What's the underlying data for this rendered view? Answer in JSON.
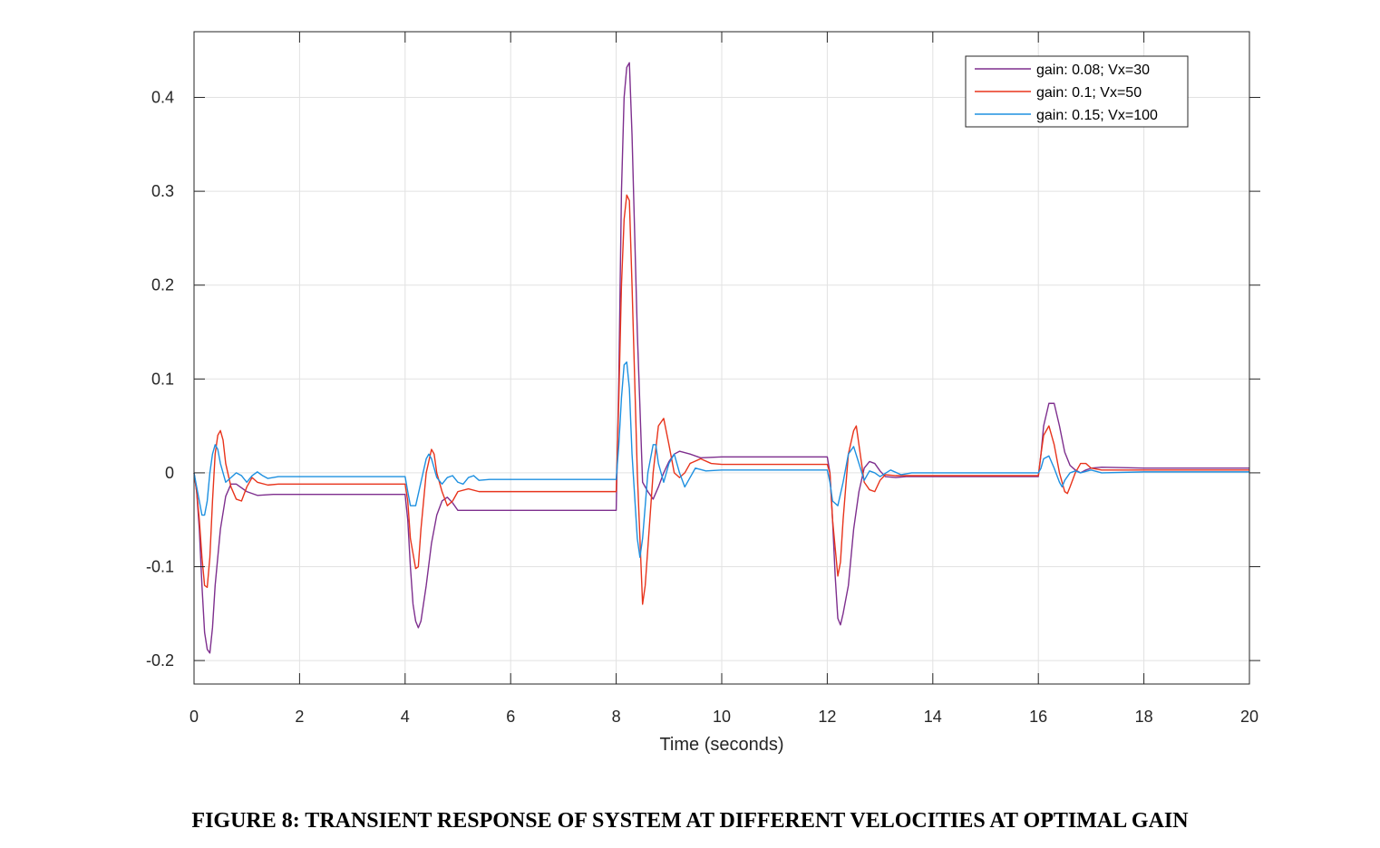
{
  "caption": "FIGURE 8: TRANSIENT RESPONSE OF SYSTEM AT DIFFERENT VELOCITIES AT OPTIMAL GAIN",
  "chart_data": {
    "type": "line",
    "title": "",
    "xlabel": "Time (seconds)",
    "ylabel": "",
    "xlim": [
      0,
      20
    ],
    "ylim": [
      -0.225,
      0.47
    ],
    "xticks": [
      0,
      2,
      4,
      6,
      8,
      10,
      12,
      14,
      16,
      18,
      20
    ],
    "xtick_labels": [
      "0",
      "2",
      "4",
      "6",
      "8",
      "10",
      "12",
      "14",
      "16",
      "18",
      "20"
    ],
    "yticks": [
      -0.2,
      -0.1,
      0,
      0.1,
      0.2,
      0.3,
      0.4
    ],
    "ytick_labels": [
      "-0.2",
      "-0.1",
      "0",
      "0.1",
      "0.2",
      "0.3",
      "0.4"
    ],
    "grid": true,
    "legend_position": "top-right",
    "series": [
      {
        "name": "gain: 0.08; Vx=30",
        "color": "#7E2F8E",
        "points": [
          [
            0,
            0
          ],
          [
            0.05,
            -0.02
          ],
          [
            0.1,
            -0.06
          ],
          [
            0.15,
            -0.12
          ],
          [
            0.2,
            -0.17
          ],
          [
            0.25,
            -0.188
          ],
          [
            0.3,
            -0.192
          ],
          [
            0.35,
            -0.165
          ],
          [
            0.4,
            -0.12
          ],
          [
            0.5,
            -0.06
          ],
          [
            0.6,
            -0.025
          ],
          [
            0.7,
            -0.012
          ],
          [
            0.8,
            -0.012
          ],
          [
            1.0,
            -0.02
          ],
          [
            1.2,
            -0.024
          ],
          [
            1.5,
            -0.023
          ],
          [
            2.0,
            -0.023
          ],
          [
            3.0,
            -0.023
          ],
          [
            4.0,
            -0.023
          ],
          [
            4.05,
            -0.05
          ],
          [
            4.1,
            -0.1
          ],
          [
            4.15,
            -0.14
          ],
          [
            4.2,
            -0.158
          ],
          [
            4.25,
            -0.165
          ],
          [
            4.3,
            -0.158
          ],
          [
            4.4,
            -0.12
          ],
          [
            4.5,
            -0.075
          ],
          [
            4.6,
            -0.045
          ],
          [
            4.7,
            -0.03
          ],
          [
            4.8,
            -0.026
          ],
          [
            4.9,
            -0.032
          ],
          [
            5.0,
            -0.04
          ],
          [
            5.2,
            -0.04
          ],
          [
            5.5,
            -0.04
          ],
          [
            6.0,
            -0.04
          ],
          [
            7.0,
            -0.04
          ],
          [
            8.0,
            -0.04
          ],
          [
            8.05,
            0.1
          ],
          [
            8.1,
            0.3
          ],
          [
            8.15,
            0.4
          ],
          [
            8.2,
            0.432
          ],
          [
            8.25,
            0.437
          ],
          [
            8.3,
            0.36
          ],
          [
            8.4,
            0.15
          ],
          [
            8.5,
            -0.01
          ],
          [
            8.6,
            -0.02
          ],
          [
            8.7,
            -0.028
          ],
          [
            8.8,
            -0.015
          ],
          [
            8.9,
            0.0
          ],
          [
            9.0,
            0.012
          ],
          [
            9.1,
            0.02
          ],
          [
            9.2,
            0.023
          ],
          [
            9.4,
            0.02
          ],
          [
            9.6,
            0.016
          ],
          [
            10.0,
            0.017
          ],
          [
            11.0,
            0.017
          ],
          [
            12.0,
            0.017
          ],
          [
            12.05,
            0.0
          ],
          [
            12.1,
            -0.05
          ],
          [
            12.15,
            -0.11
          ],
          [
            12.2,
            -0.155
          ],
          [
            12.25,
            -0.162
          ],
          [
            12.3,
            -0.15
          ],
          [
            12.4,
            -0.12
          ],
          [
            12.5,
            -0.06
          ],
          [
            12.6,
            -0.02
          ],
          [
            12.7,
            0.005
          ],
          [
            12.8,
            0.012
          ],
          [
            12.9,
            0.01
          ],
          [
            13.0,
            0.002
          ],
          [
            13.1,
            -0.004
          ],
          [
            13.3,
            -0.005
          ],
          [
            13.5,
            -0.004
          ],
          [
            14.0,
            -0.004
          ],
          [
            15.0,
            -0.004
          ],
          [
            16.0,
            -0.004
          ],
          [
            16.05,
            0.02
          ],
          [
            16.1,
            0.05
          ],
          [
            16.2,
            0.074
          ],
          [
            16.3,
            0.074
          ],
          [
            16.4,
            0.05
          ],
          [
            16.5,
            0.022
          ],
          [
            16.6,
            0.008
          ],
          [
            16.7,
            0.003
          ],
          [
            16.8,
            0.0
          ],
          [
            16.9,
            0.003
          ],
          [
            17.0,
            0.005
          ],
          [
            17.2,
            0.006
          ],
          [
            18.0,
            0.005
          ],
          [
            19.0,
            0.005
          ],
          [
            20.0,
            0.005
          ]
        ]
      },
      {
        "name": "gain: 0.1; Vx=50",
        "color": "#E8341C",
        "points": [
          [
            0,
            0
          ],
          [
            0.05,
            -0.02
          ],
          [
            0.1,
            -0.05
          ],
          [
            0.15,
            -0.09
          ],
          [
            0.2,
            -0.12
          ],
          [
            0.25,
            -0.122
          ],
          [
            0.3,
            -0.09
          ],
          [
            0.35,
            -0.03
          ],
          [
            0.4,
            0.02
          ],
          [
            0.45,
            0.04
          ],
          [
            0.5,
            0.045
          ],
          [
            0.55,
            0.035
          ],
          [
            0.6,
            0.01
          ],
          [
            0.7,
            -0.015
          ],
          [
            0.8,
            -0.028
          ],
          [
            0.9,
            -0.03
          ],
          [
            1.0,
            -0.015
          ],
          [
            1.1,
            -0.005
          ],
          [
            1.2,
            -0.01
          ],
          [
            1.4,
            -0.013
          ],
          [
            1.6,
            -0.012
          ],
          [
            2.0,
            -0.012
          ],
          [
            3.0,
            -0.012
          ],
          [
            4.0,
            -0.012
          ],
          [
            4.05,
            -0.03
          ],
          [
            4.1,
            -0.07
          ],
          [
            4.2,
            -0.102
          ],
          [
            4.25,
            -0.1
          ],
          [
            4.3,
            -0.06
          ],
          [
            4.4,
            0.0
          ],
          [
            4.5,
            0.025
          ],
          [
            4.55,
            0.02
          ],
          [
            4.6,
            0.0
          ],
          [
            4.7,
            -0.02
          ],
          [
            4.8,
            -0.035
          ],
          [
            4.9,
            -0.03
          ],
          [
            5.0,
            -0.02
          ],
          [
            5.2,
            -0.017
          ],
          [
            5.4,
            -0.02
          ],
          [
            5.6,
            -0.02
          ],
          [
            6.0,
            -0.02
          ],
          [
            7.0,
            -0.02
          ],
          [
            8.0,
            -0.02
          ],
          [
            8.05,
            0.08
          ],
          [
            8.1,
            0.2
          ],
          [
            8.15,
            0.27
          ],
          [
            8.2,
            0.296
          ],
          [
            8.25,
            0.29
          ],
          [
            8.3,
            0.2
          ],
          [
            8.4,
            0.0
          ],
          [
            8.5,
            -0.14
          ],
          [
            8.55,
            -0.12
          ],
          [
            8.6,
            -0.08
          ],
          [
            8.7,
            0.0
          ],
          [
            8.8,
            0.05
          ],
          [
            8.9,
            0.058
          ],
          [
            9.0,
            0.03
          ],
          [
            9.1,
            0.0
          ],
          [
            9.2,
            -0.005
          ],
          [
            9.3,
            0.0
          ],
          [
            9.4,
            0.01
          ],
          [
            9.6,
            0.015
          ],
          [
            9.8,
            0.01
          ],
          [
            10.0,
            0.009
          ],
          [
            11.0,
            0.009
          ],
          [
            12.0,
            0.009
          ],
          [
            12.05,
            0.0
          ],
          [
            12.1,
            -0.05
          ],
          [
            12.2,
            -0.11
          ],
          [
            12.25,
            -0.095
          ],
          [
            12.3,
            -0.05
          ],
          [
            12.4,
            0.02
          ],
          [
            12.5,
            0.045
          ],
          [
            12.55,
            0.05
          ],
          [
            12.6,
            0.03
          ],
          [
            12.7,
            -0.01
          ],
          [
            12.8,
            -0.018
          ],
          [
            12.9,
            -0.02
          ],
          [
            13.0,
            -0.008
          ],
          [
            13.1,
            -0.002
          ],
          [
            13.3,
            -0.003
          ],
          [
            13.5,
            -0.003
          ],
          [
            14.0,
            -0.003
          ],
          [
            15.0,
            -0.003
          ],
          [
            16.0,
            -0.003
          ],
          [
            16.05,
            0.02
          ],
          [
            16.1,
            0.04
          ],
          [
            16.2,
            0.05
          ],
          [
            16.3,
            0.03
          ],
          [
            16.4,
            0.0
          ],
          [
            16.5,
            -0.02
          ],
          [
            16.55,
            -0.022
          ],
          [
            16.6,
            -0.015
          ],
          [
            16.7,
            0.0
          ],
          [
            16.8,
            0.01
          ],
          [
            16.9,
            0.01
          ],
          [
            17.0,
            0.005
          ],
          [
            17.2,
            0.003
          ],
          [
            18.0,
            0.003
          ],
          [
            19.0,
            0.003
          ],
          [
            20.0,
            0.003
          ]
        ]
      },
      {
        "name": "gain: 0.15; Vx=100",
        "color": "#1E90E0",
        "points": [
          [
            0,
            0
          ],
          [
            0.05,
            -0.015
          ],
          [
            0.1,
            -0.03
          ],
          [
            0.15,
            -0.045
          ],
          [
            0.2,
            -0.045
          ],
          [
            0.25,
            -0.03
          ],
          [
            0.3,
            0.0
          ],
          [
            0.35,
            0.02
          ],
          [
            0.4,
            0.03
          ],
          [
            0.45,
            0.025
          ],
          [
            0.5,
            0.01
          ],
          [
            0.6,
            -0.01
          ],
          [
            0.7,
            -0.005
          ],
          [
            0.8,
            0.0
          ],
          [
            0.9,
            -0.003
          ],
          [
            1.0,
            -0.01
          ],
          [
            1.1,
            -0.003
          ],
          [
            1.2,
            0.001
          ],
          [
            1.3,
            -0.003
          ],
          [
            1.4,
            -0.006
          ],
          [
            1.6,
            -0.004
          ],
          [
            2.0,
            -0.004
          ],
          [
            3.0,
            -0.004
          ],
          [
            4.0,
            -0.004
          ],
          [
            4.05,
            -0.02
          ],
          [
            4.1,
            -0.035
          ],
          [
            4.2,
            -0.035
          ],
          [
            4.3,
            -0.01
          ],
          [
            4.4,
            0.015
          ],
          [
            4.45,
            0.02
          ],
          [
            4.5,
            0.015
          ],
          [
            4.6,
            -0.005
          ],
          [
            4.7,
            -0.012
          ],
          [
            4.8,
            -0.005
          ],
          [
            4.9,
            -0.003
          ],
          [
            5.0,
            -0.01
          ],
          [
            5.1,
            -0.012
          ],
          [
            5.2,
            -0.005
          ],
          [
            5.3,
            -0.003
          ],
          [
            5.4,
            -0.008
          ],
          [
            5.6,
            -0.007
          ],
          [
            6.0,
            -0.007
          ],
          [
            7.0,
            -0.007
          ],
          [
            8.0,
            -0.007
          ],
          [
            8.05,
            0.03
          ],
          [
            8.1,
            0.08
          ],
          [
            8.15,
            0.115
          ],
          [
            8.2,
            0.118
          ],
          [
            8.25,
            0.09
          ],
          [
            8.3,
            0.02
          ],
          [
            8.4,
            -0.07
          ],
          [
            8.45,
            -0.09
          ],
          [
            8.5,
            -0.07
          ],
          [
            8.6,
            0.0
          ],
          [
            8.7,
            0.03
          ],
          [
            8.75,
            0.03
          ],
          [
            8.8,
            0.01
          ],
          [
            8.9,
            -0.01
          ],
          [
            9.0,
            0.01
          ],
          [
            9.1,
            0.02
          ],
          [
            9.2,
            0.0
          ],
          [
            9.3,
            -0.015
          ],
          [
            9.4,
            -0.005
          ],
          [
            9.5,
            0.005
          ],
          [
            9.7,
            0.002
          ],
          [
            10.0,
            0.003
          ],
          [
            11.0,
            0.003
          ],
          [
            12.0,
            0.003
          ],
          [
            12.05,
            -0.01
          ],
          [
            12.1,
            -0.03
          ],
          [
            12.2,
            -0.035
          ],
          [
            12.3,
            -0.01
          ],
          [
            12.4,
            0.02
          ],
          [
            12.5,
            0.028
          ],
          [
            12.6,
            0.01
          ],
          [
            12.7,
            -0.008
          ],
          [
            12.8,
            0.002
          ],
          [
            12.9,
            0.0
          ],
          [
            13.0,
            -0.004
          ],
          [
            13.2,
            0.003
          ],
          [
            13.4,
            -0.002
          ],
          [
            13.6,
            0.0
          ],
          [
            14.0,
            0.0
          ],
          [
            15.0,
            0.0
          ],
          [
            16.0,
            0.0
          ],
          [
            16.05,
            0.005
          ],
          [
            16.1,
            0.015
          ],
          [
            16.2,
            0.018
          ],
          [
            16.3,
            0.005
          ],
          [
            16.4,
            -0.01
          ],
          [
            16.45,
            -0.015
          ],
          [
            16.5,
            -0.008
          ],
          [
            16.6,
            0.0
          ],
          [
            16.7,
            0.002
          ],
          [
            16.8,
            0.0
          ],
          [
            17.0,
            0.003
          ],
          [
            17.2,
            0.0
          ],
          [
            18.0,
            0.001
          ],
          [
            19.0,
            0.001
          ],
          [
            20.0,
            0.001
          ]
        ]
      }
    ]
  }
}
